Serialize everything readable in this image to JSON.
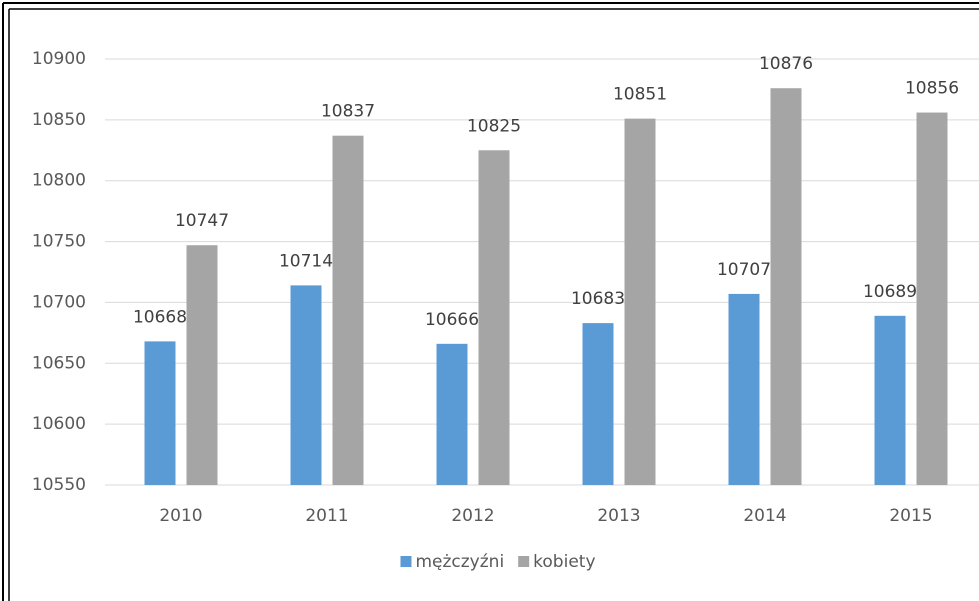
{
  "chart_data": {
    "type": "bar",
    "categories": [
      "2010",
      "2011",
      "2012",
      "2013",
      "2014",
      "2015"
    ],
    "series": [
      {
        "name": "mężczyźni",
        "color": "#5b9bd5",
        "values": [
          10668,
          10714,
          10666,
          10683,
          10707,
          10689
        ]
      },
      {
        "name": "kobiety",
        "color": "#a5a5a5",
        "values": [
          10747,
          10837,
          10825,
          10851,
          10876,
          10856
        ]
      }
    ],
    "ylim": [
      10550,
      10900
    ],
    "yticks": [
      10550,
      10600,
      10650,
      10700,
      10750,
      10800,
      10850,
      10900
    ],
    "grid": true,
    "legend": "bottom"
  }
}
